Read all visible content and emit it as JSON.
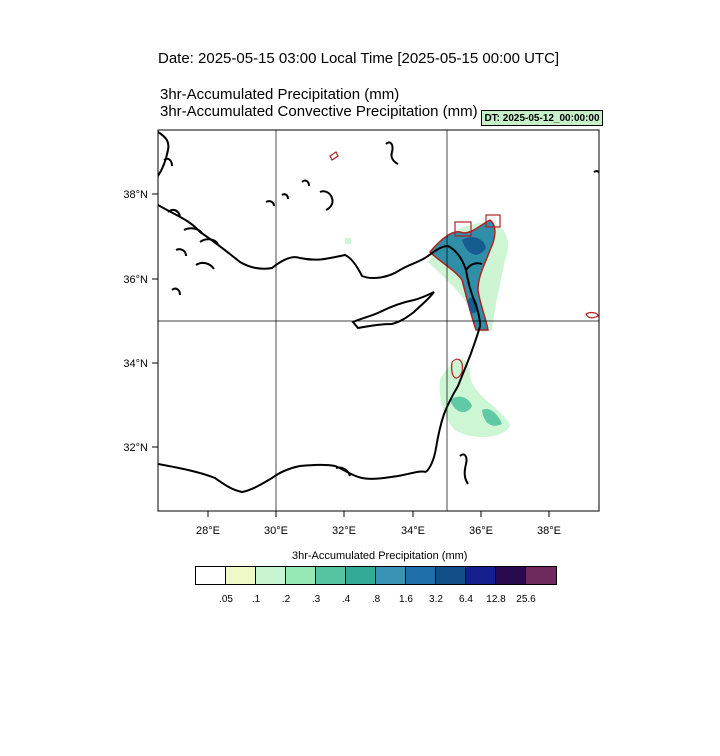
{
  "header": {
    "date_line": "Date: 2025-05-15  03:00 Local Time [2025-05-15  00:00 UTC]",
    "var_line_1": "3hr-Accumulated Precipitation   (mm)",
    "var_line_2": "3hr-Accumulated Convective Precipitation   (mm)",
    "dt_badge": "DT: 2025-05-12_00:00:00",
    "dt_badge_color": "#c8f0c8"
  },
  "map": {
    "region": "Eastern Mediterranean",
    "lon_range": [
      26.5,
      39.5
    ],
    "lat_range": [
      30.4,
      39.4
    ],
    "lat_ticks": [
      "38°N",
      "36°N",
      "34°N",
      "32°N"
    ],
    "lon_ticks": [
      "28°E",
      "30°E",
      "32°E",
      "34°E",
      "36°E",
      "38°E"
    ],
    "gridlines": {
      "lon": [
        30,
        35
      ],
      "lat": [
        35
      ]
    },
    "precip_color_main": "#2f8fa8",
    "convective_contour_color": "#b22222"
  },
  "legend": {
    "title": "3hr-Accumulated Precipitation   (mm)",
    "labels": [
      ".05",
      ".1",
      ".2",
      ".3",
      ".4",
      ".8",
      "1.6",
      "3.2",
      "6.4",
      "12.8",
      "25.6"
    ],
    "colors": [
      "#ffffff",
      "#eef9c8",
      "#c8f5d0",
      "#96e8b4",
      "#55c4a0",
      "#33aa98",
      "#3a93b4",
      "#1f6fa8",
      "#124f88",
      "#141e8c",
      "#2a0a4e",
      "#6e2a5a"
    ]
  }
}
